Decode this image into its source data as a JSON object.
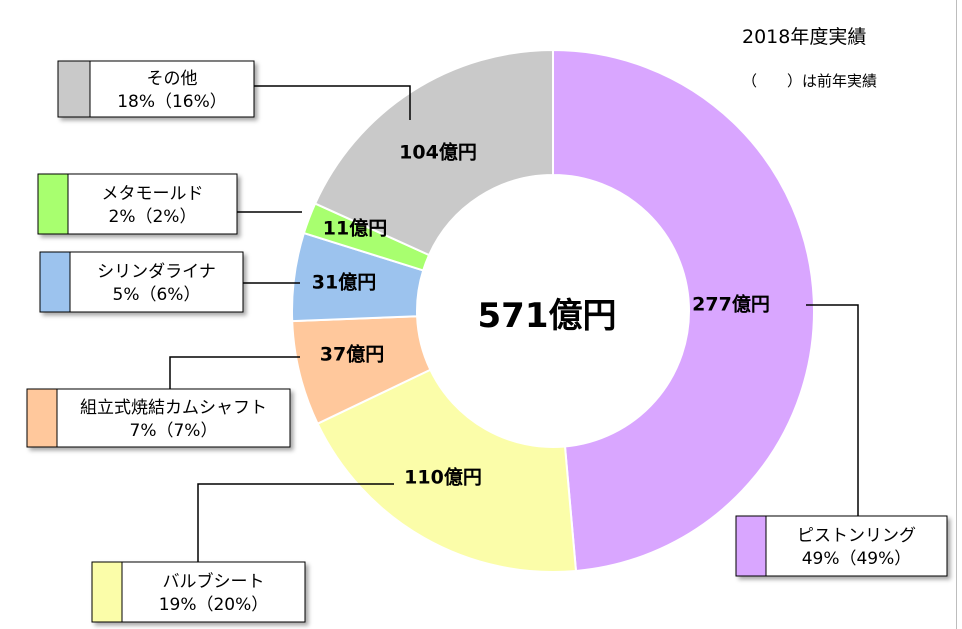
{
  "header": {
    "title": "2018年度実績",
    "note": "（　　）は前年実績"
  },
  "chart_data": {
    "type": "pie",
    "style": "donut",
    "total_label": "571億円",
    "unit": "億円",
    "slices": [
      {
        "name": "ピストンリング",
        "value": 277,
        "value_label": "277億円",
        "share_label": "49%（49%）",
        "share": 49,
        "share_prev": 49,
        "color": "#d9a6ff"
      },
      {
        "name": "バルブシート",
        "value": 110,
        "value_label": "110億円",
        "share_label": "19%（20%）",
        "share": 19,
        "share_prev": 20,
        "color": "#fbfda9"
      },
      {
        "name": "組立式焼結カムシャフト",
        "value": 37,
        "value_label": "37億円",
        "share_label": "7%（7%）",
        "share": 7,
        "share_prev": 7,
        "color": "#ffc89c"
      },
      {
        "name": "シリンダライナ",
        "value": 31,
        "value_label": "31億円",
        "share_label": "5%（6%）",
        "share": 5,
        "share_prev": 6,
        "color": "#9cc3ee"
      },
      {
        "name": "メタモールド",
        "value": 11,
        "value_label": "11億円",
        "share_label": "2%（2%）",
        "share": 2,
        "share_prev": 2,
        "color": "#a8ff6f"
      },
      {
        "name": "その他",
        "value": 104,
        "value_label": "104億円",
        "share_label": "18%（16%）",
        "share": 18,
        "share_prev": 16,
        "color": "#c9c9c9"
      }
    ]
  }
}
